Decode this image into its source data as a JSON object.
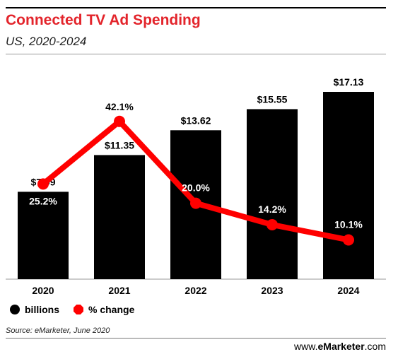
{
  "header": {
    "title": "Connected TV Ad Spending",
    "subtitle": "US, 2020-2024"
  },
  "legend": {
    "bars_label": "billions",
    "line_label": "% change"
  },
  "footer": {
    "source": "Source: eMarketer, June 2020",
    "website_prefix": "www.",
    "website_brand": "eMarketer",
    "website_suffix": ".com"
  },
  "colors": {
    "title": "#e3242b",
    "bars": "#000000",
    "line": "#ff0000"
  },
  "chart_data": {
    "type": "bar",
    "categories": [
      "2020",
      "2021",
      "2022",
      "2023",
      "2024"
    ],
    "series": [
      {
        "name": "billions",
        "type": "bar",
        "values": [
          7.99,
          11.35,
          13.62,
          15.55,
          17.13
        ],
        "labels": [
          "$7.99",
          "$11.35",
          "$13.62",
          "$15.55",
          "$17.13"
        ]
      },
      {
        "name": "% change",
        "type": "line",
        "values": [
          25.2,
          42.1,
          20.0,
          14.2,
          10.1
        ],
        "labels": [
          "25.2%",
          "42.1%",
          "20.0%",
          "14.2%",
          "10.1%"
        ]
      }
    ],
    "title": "Connected TV Ad Spending",
    "subtitle": "US, 2020-2024",
    "legend_position": "bottom-left",
    "grid": false
  }
}
